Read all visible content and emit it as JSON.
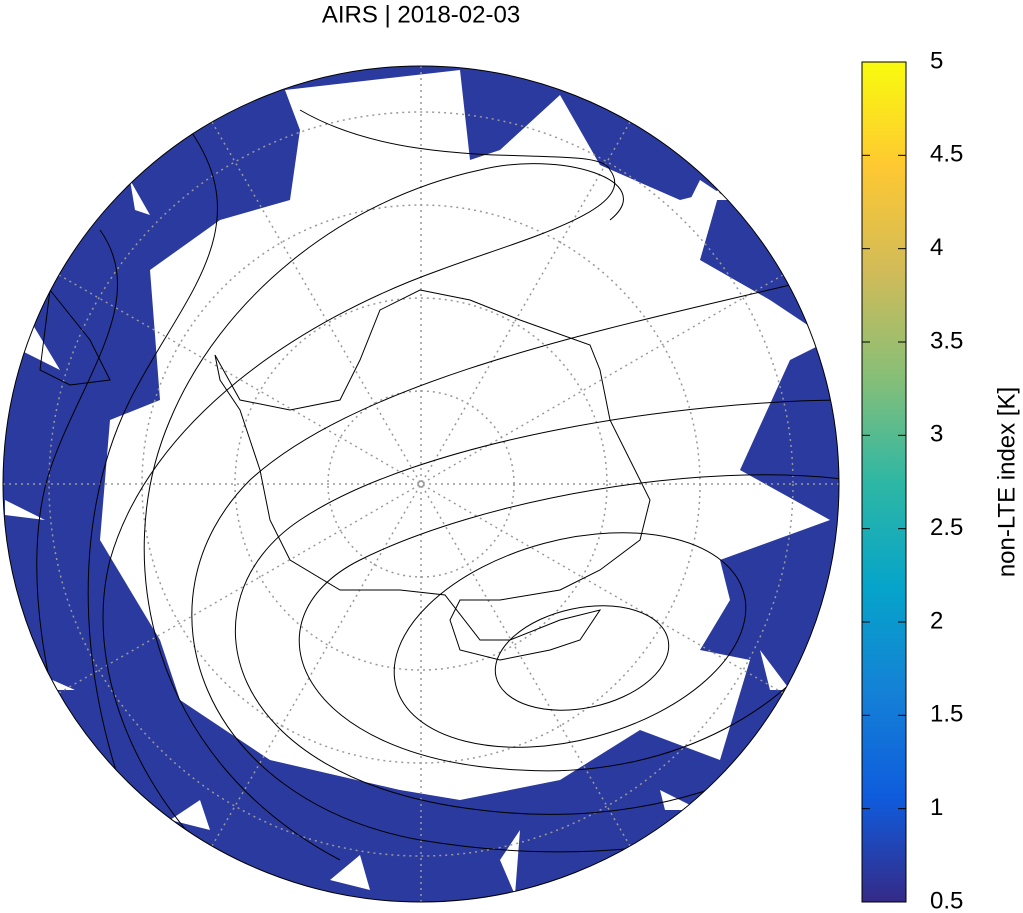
{
  "title": "AIRS | 2018-02-03",
  "colorbar": {
    "label": "non-LTE index [K]",
    "lim": [
      0.5,
      5
    ],
    "ticks": [
      0.5,
      1,
      1.5,
      2,
      2.5,
      3,
      3.5,
      4,
      4.5,
      5
    ],
    "colors": [
      "#352a87",
      "#0f5cdd",
      "#1481d6",
      "#06a4ca",
      "#2eb7a4",
      "#87bf77",
      "#d1bb59",
      "#fec832",
      "#f9fb0e"
    ]
  }
}
